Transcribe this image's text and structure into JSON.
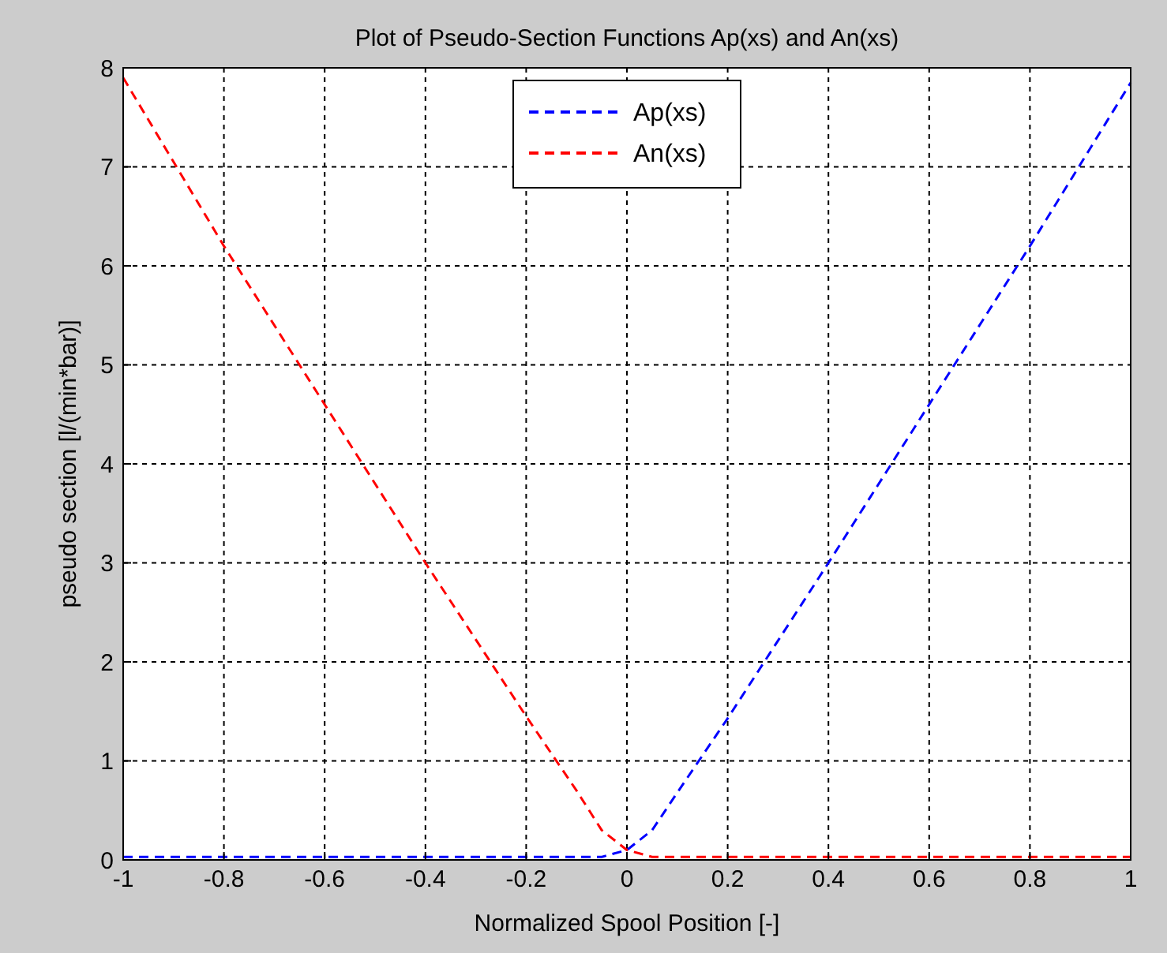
{
  "chart_data": {
    "type": "line",
    "title": "Plot of Pseudo-Section Functions Ap(xs) and An(xs)",
    "xlabel": "Normalized Spool Position [-]",
    "ylabel": "pseudo section [l/(min*bar)]",
    "xlim": [
      -1,
      1
    ],
    "ylim": [
      0,
      8
    ],
    "xticks": [
      -1,
      -0.8,
      -0.6,
      -0.4,
      -0.2,
      0,
      0.2,
      0.4,
      0.6,
      0.8,
      1
    ],
    "yticks": [
      0,
      1,
      2,
      3,
      4,
      5,
      6,
      7,
      8
    ],
    "grid": true,
    "legend": "top",
    "line_style": "dashed",
    "marker": "none",
    "series": [
      {
        "name": "Ap(xs)",
        "color": "#0000ff",
        "x": [
          -1,
          -0.5,
          -0.05,
          0,
          0.05,
          0.1,
          0.2,
          0.4,
          0.6,
          0.8,
          1
        ],
        "values": [
          0.03,
          0.03,
          0.03,
          0.1,
          0.3,
          0.68,
          1.43,
          3.0,
          4.6,
          6.2,
          7.85
        ]
      },
      {
        "name": "An(xs)",
        "color": "#ff0000",
        "x": [
          -1,
          -0.8,
          -0.6,
          -0.4,
          -0.2,
          -0.1,
          -0.05,
          0,
          0.05,
          0.5,
          1
        ],
        "values": [
          7.9,
          6.2,
          4.6,
          3.0,
          1.45,
          0.7,
          0.3,
          0.1,
          0.03,
          0.03,
          0.03
        ]
      }
    ]
  }
}
